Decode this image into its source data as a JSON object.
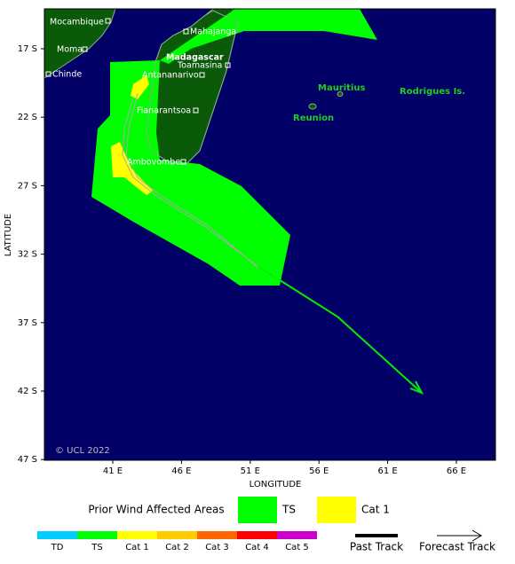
{
  "map": {
    "lat_ticks": [
      "17 S",
      "22 S",
      "27 S",
      "32 S",
      "37 S",
      "42 S",
      "47 S"
    ],
    "lon_ticks": [
      "41 E",
      "46 E",
      "51 E",
      "56 E",
      "61 E",
      "66 E"
    ],
    "x_label": "LONGITUDE",
    "y_label": "LATITUDE",
    "copyright": "© UCL 2022",
    "places": [
      "Mocambique",
      "Moma",
      "Chinde",
      "Mahajanga",
      "Madagascar",
      "Toamasina",
      "Antananarivo",
      "Fianarantsoa",
      "Ambovombe",
      "Mauritius",
      "Reunion",
      "Rodrigues Is."
    ]
  },
  "legend": {
    "title": "Prior Wind Affected Areas",
    "areas": [
      "TS",
      "Cat 1"
    ],
    "scale": [
      "TD",
      "TS",
      "Cat 1",
      "Cat 2",
      "Cat 3",
      "Cat 4",
      "Cat 5"
    ],
    "tracks": [
      "Past Track",
      "Forecast Track"
    ]
  }
}
